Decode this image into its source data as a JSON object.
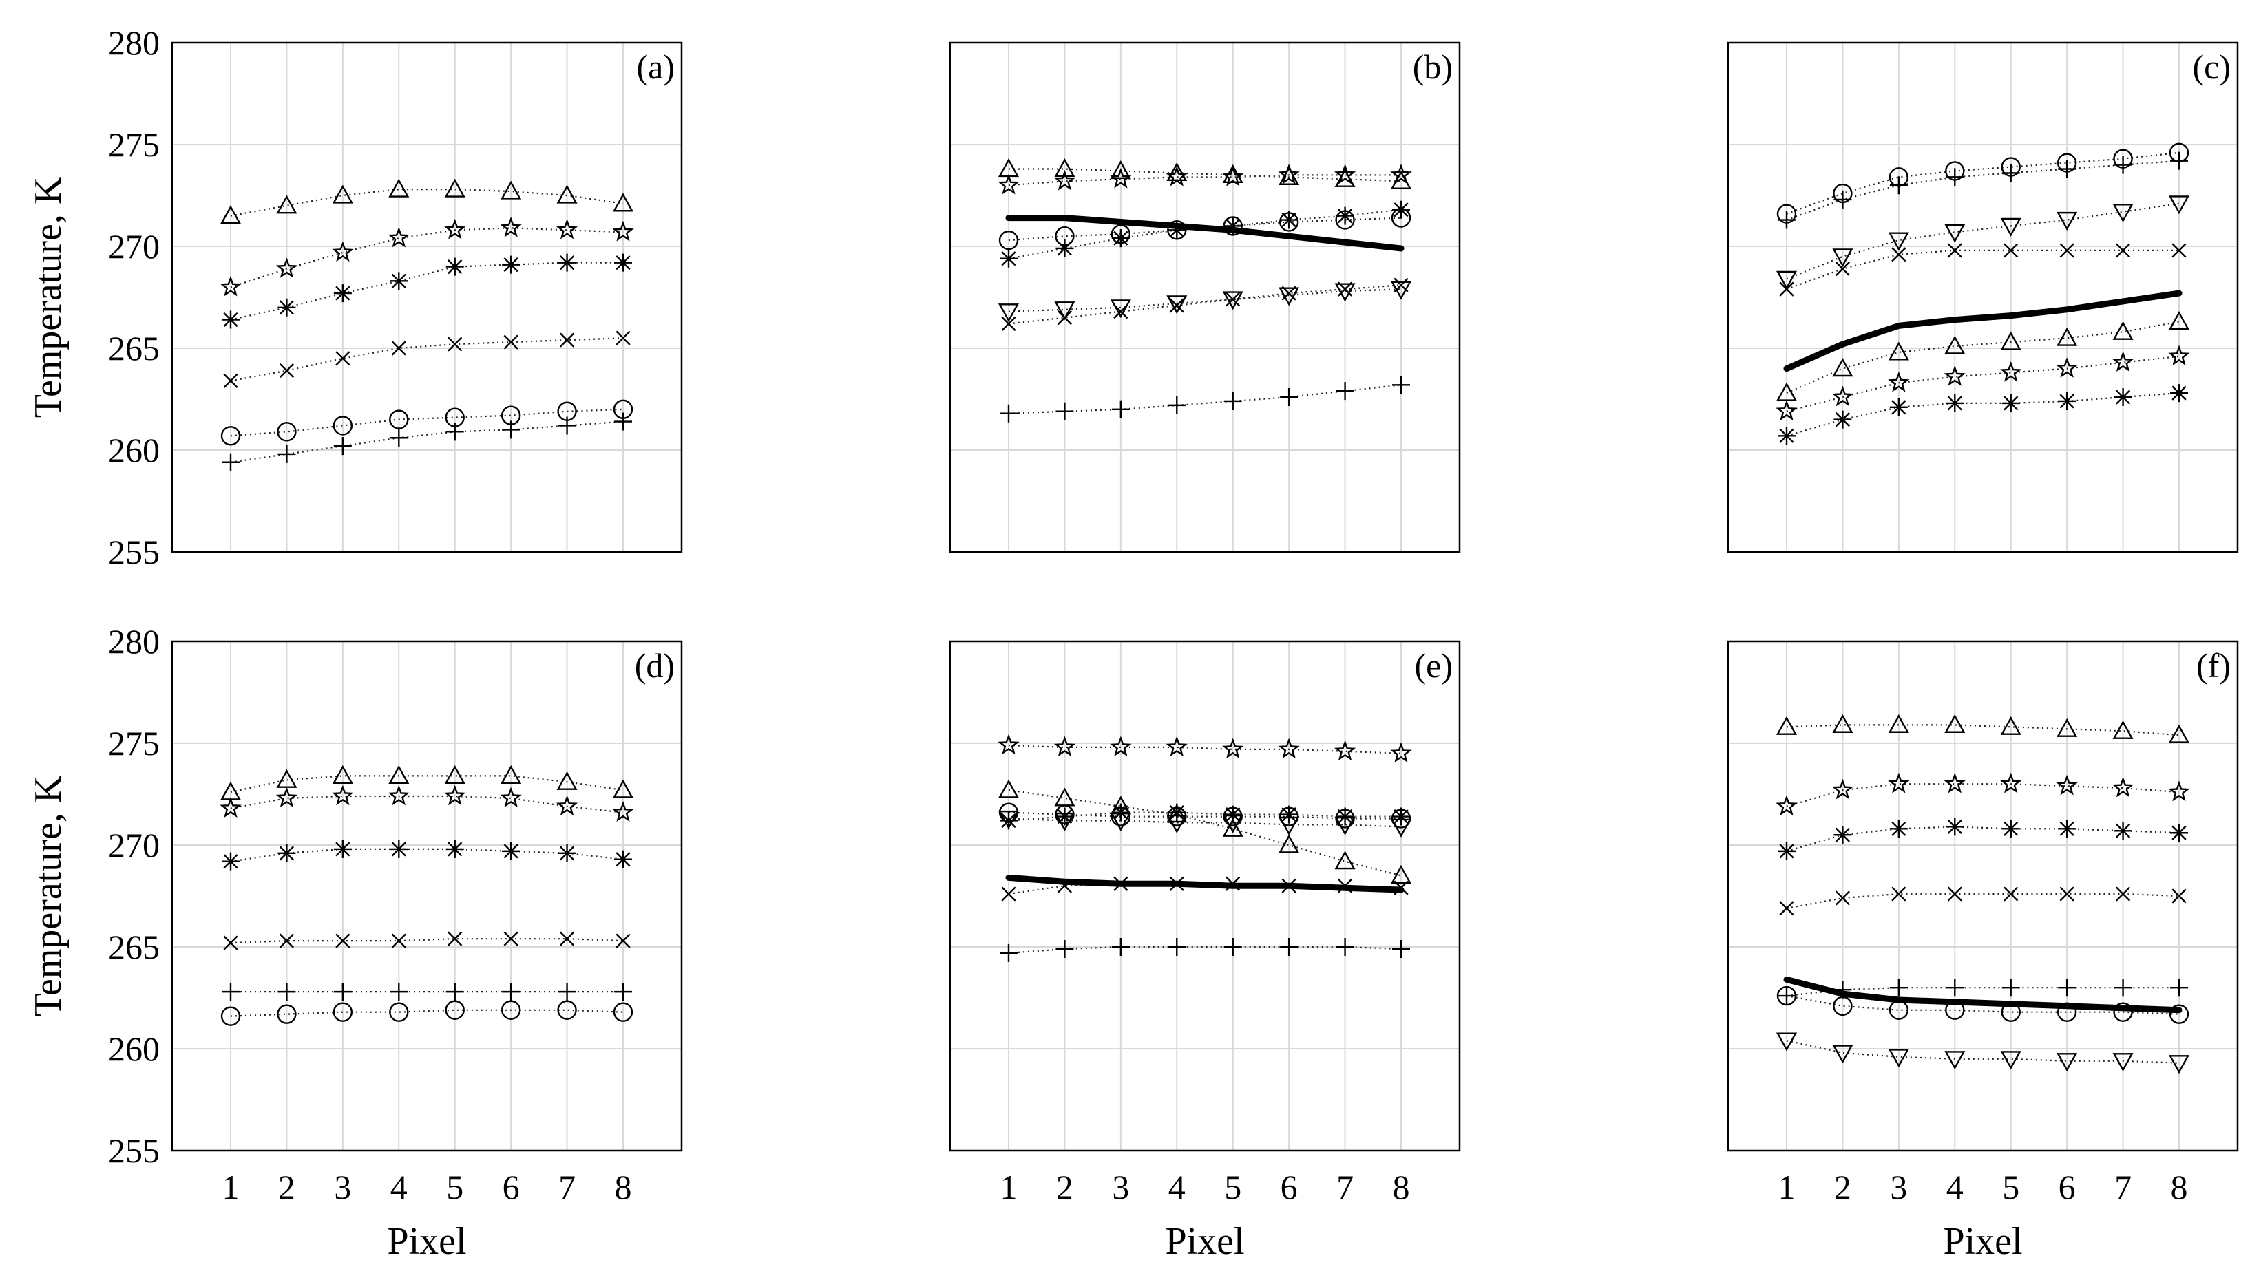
{
  "chart_data": [
    {
      "type": "line",
      "panel": "(a)",
      "x": [
        1,
        2,
        3,
        4,
        5,
        6,
        7,
        8
      ],
      "ylim": [
        255,
        280
      ],
      "xlabel": "",
      "ylabel": "Temperature, K",
      "yticks": [
        255,
        260,
        265,
        270,
        275,
        280
      ],
      "xticks": [],
      "series": [
        {
          "marker": "triangle-up",
          "style": "dotted",
          "values": [
            271.5,
            272.0,
            272.5,
            272.8,
            272.8,
            272.7,
            272.5,
            272.1
          ]
        },
        {
          "marker": "star",
          "style": "dotted",
          "values": [
            268.0,
            268.9,
            269.7,
            270.4,
            270.8,
            270.9,
            270.8,
            270.7
          ]
        },
        {
          "marker": "asterisk",
          "style": "dotted",
          "values": [
            266.4,
            267.0,
            267.7,
            268.3,
            269.0,
            269.1,
            269.2,
            269.2
          ]
        },
        {
          "marker": "x",
          "style": "dotted",
          "values": [
            263.4,
            263.9,
            264.5,
            265.0,
            265.2,
            265.3,
            265.4,
            265.5
          ]
        },
        {
          "marker": "circle",
          "style": "dotted",
          "values": [
            260.7,
            260.9,
            261.2,
            261.5,
            261.6,
            261.7,
            261.9,
            262.0
          ]
        },
        {
          "marker": "plus",
          "style": "dotted",
          "values": [
            259.4,
            259.8,
            260.2,
            260.6,
            260.9,
            261.0,
            261.2,
            261.4
          ]
        }
      ]
    },
    {
      "type": "line",
      "panel": "(b)",
      "x": [
        1,
        2,
        3,
        4,
        5,
        6,
        7,
        8
      ],
      "ylim": [
        255,
        280
      ],
      "xlabel": "",
      "ylabel": "",
      "yticks": [],
      "xticks": [],
      "series": [
        {
          "marker": "triangle-up",
          "style": "dotted",
          "values": [
            273.8,
            273.8,
            273.7,
            273.6,
            273.5,
            273.4,
            273.3,
            273.2
          ]
        },
        {
          "marker": "star",
          "style": "dotted",
          "values": [
            273.0,
            273.2,
            273.3,
            273.4,
            273.4,
            273.5,
            273.5,
            273.5
          ]
        },
        {
          "marker": "asterisk",
          "style": "dotted",
          "values": [
            269.4,
            269.9,
            270.4,
            270.8,
            271.0,
            271.3,
            271.5,
            271.8
          ]
        },
        {
          "marker": "circle",
          "style": "dotted",
          "values": [
            270.3,
            270.5,
            270.6,
            270.8,
            271.0,
            271.2,
            271.3,
            271.4
          ]
        },
        {
          "marker": "triangle-down",
          "style": "dotted",
          "values": [
            266.8,
            266.9,
            267.0,
            267.2,
            267.4,
            267.6,
            267.8,
            267.9
          ]
        },
        {
          "marker": "x",
          "style": "dotted",
          "values": [
            266.2,
            266.5,
            266.8,
            267.1,
            267.4,
            267.7,
            267.9,
            268.1
          ]
        },
        {
          "marker": "plus",
          "style": "dotted",
          "values": [
            261.8,
            261.9,
            262.0,
            262.2,
            262.4,
            262.6,
            262.9,
            263.2
          ]
        },
        {
          "marker": "none",
          "style": "thick",
          "values": [
            271.4,
            271.4,
            271.2,
            271.0,
            270.8,
            270.5,
            270.2,
            269.9
          ]
        }
      ]
    },
    {
      "type": "line",
      "panel": "(c)",
      "x": [
        1,
        2,
        3,
        4,
        5,
        6,
        7,
        8
      ],
      "ylim": [
        255,
        280
      ],
      "xlabel": "",
      "ylabel": "",
      "yticks": [],
      "xticks": [],
      "series": [
        {
          "marker": "circle",
          "style": "dotted",
          "values": [
            271.6,
            272.6,
            273.4,
            273.7,
            273.9,
            274.1,
            274.3,
            274.6
          ]
        },
        {
          "marker": "plus",
          "style": "dotted",
          "values": [
            271.3,
            272.3,
            273.0,
            273.4,
            273.6,
            273.8,
            274.0,
            274.2
          ]
        },
        {
          "marker": "triangle-down",
          "style": "dotted",
          "values": [
            268.4,
            269.5,
            270.3,
            270.7,
            271.0,
            271.3,
            271.7,
            272.1
          ]
        },
        {
          "marker": "x",
          "style": "dotted",
          "values": [
            267.9,
            268.9,
            269.6,
            269.8,
            269.8,
            269.8,
            269.8,
            269.8
          ]
        },
        {
          "marker": "triangle-up",
          "style": "dotted",
          "values": [
            262.8,
            264.0,
            264.8,
            265.1,
            265.3,
            265.5,
            265.8,
            266.3
          ]
        },
        {
          "marker": "star",
          "style": "dotted",
          "values": [
            261.9,
            262.6,
            263.3,
            263.6,
            263.8,
            264.0,
            264.3,
            264.6
          ]
        },
        {
          "marker": "asterisk",
          "style": "dotted",
          "values": [
            260.7,
            261.5,
            262.1,
            262.3,
            262.3,
            262.4,
            262.6,
            262.8
          ]
        },
        {
          "marker": "none",
          "style": "thick",
          "values": [
            264.0,
            265.2,
            266.1,
            266.4,
            266.6,
            266.9,
            267.3,
            267.7
          ]
        }
      ]
    },
    {
      "type": "line",
      "panel": "(d)",
      "x": [
        1,
        2,
        3,
        4,
        5,
        6,
        7,
        8
      ],
      "ylim": [
        255,
        280
      ],
      "xlabel": "Pixel",
      "ylabel": "Temperature, K",
      "yticks": [
        255,
        260,
        265,
        270,
        275,
        280
      ],
      "xticks": [
        1,
        2,
        3,
        4,
        5,
        6,
        7,
        8
      ],
      "series": [
        {
          "marker": "triangle-up",
          "style": "dotted",
          "values": [
            272.6,
            273.2,
            273.4,
            273.4,
            273.4,
            273.4,
            273.1,
            272.7
          ]
        },
        {
          "marker": "star",
          "style": "dotted",
          "values": [
            271.8,
            272.3,
            272.4,
            272.4,
            272.4,
            272.3,
            271.9,
            271.6
          ]
        },
        {
          "marker": "asterisk",
          "style": "dotted",
          "values": [
            269.2,
            269.6,
            269.8,
            269.8,
            269.8,
            269.7,
            269.6,
            269.3
          ]
        },
        {
          "marker": "x",
          "style": "dotted",
          "values": [
            265.2,
            265.3,
            265.3,
            265.3,
            265.4,
            265.4,
            265.4,
            265.3
          ]
        },
        {
          "marker": "plus",
          "style": "dotted",
          "values": [
            262.8,
            262.8,
            262.8,
            262.8,
            262.8,
            262.8,
            262.8,
            262.8
          ]
        },
        {
          "marker": "circle",
          "style": "dotted",
          "values": [
            261.6,
            261.7,
            261.8,
            261.8,
            261.9,
            261.9,
            261.9,
            261.8
          ]
        }
      ]
    },
    {
      "type": "line",
      "panel": "(e)",
      "x": [
        1,
        2,
        3,
        4,
        5,
        6,
        7,
        8
      ],
      "ylim": [
        255,
        280
      ],
      "xlabel": "Pixel",
      "ylabel": "",
      "yticks": [],
      "xticks": [
        1,
        2,
        3,
        4,
        5,
        6,
        7,
        8
      ],
      "series": [
        {
          "marker": "star",
          "style": "dotted",
          "values": [
            274.9,
            274.8,
            274.8,
            274.8,
            274.7,
            274.7,
            274.6,
            274.5
          ]
        },
        {
          "marker": "triangle-up",
          "style": "dotted",
          "values": [
            272.7,
            272.3,
            271.9,
            271.5,
            270.8,
            270.0,
            269.2,
            268.5
          ]
        },
        {
          "marker": "circle",
          "style": "dotted",
          "values": [
            271.6,
            271.5,
            271.4,
            271.4,
            271.4,
            271.4,
            271.3,
            271.3
          ]
        },
        {
          "marker": "asterisk",
          "style": "dotted",
          "values": [
            271.2,
            271.4,
            271.6,
            271.6,
            271.5,
            271.5,
            271.4,
            271.4
          ]
        },
        {
          "marker": "triangle-down",
          "style": "dotted",
          "values": [
            271.3,
            271.2,
            271.2,
            271.1,
            271.1,
            271.0,
            271.0,
            270.9
          ]
        },
        {
          "marker": "x",
          "style": "dotted",
          "values": [
            267.6,
            268.0,
            268.1,
            268.1,
            268.1,
            268.0,
            268.0,
            267.9
          ]
        },
        {
          "marker": "plus",
          "style": "dotted",
          "values": [
            264.7,
            264.9,
            265.0,
            265.0,
            265.0,
            265.0,
            265.0,
            264.9
          ]
        },
        {
          "marker": "none",
          "style": "thick",
          "values": [
            268.4,
            268.2,
            268.1,
            268.1,
            268.0,
            268.0,
            267.9,
            267.8
          ]
        }
      ]
    },
    {
      "type": "line",
      "panel": "(f)",
      "x": [
        1,
        2,
        3,
        4,
        5,
        6,
        7,
        8
      ],
      "ylim": [
        255,
        280
      ],
      "xlabel": "Pixel",
      "ylabel": "",
      "yticks": [],
      "xticks": [
        1,
        2,
        3,
        4,
        5,
        6,
        7,
        8
      ],
      "series": [
        {
          "marker": "triangle-up",
          "style": "dotted",
          "values": [
            275.8,
            275.9,
            275.9,
            275.9,
            275.8,
            275.7,
            275.6,
            275.4
          ]
        },
        {
          "marker": "star",
          "style": "dotted",
          "values": [
            271.9,
            272.7,
            273.0,
            273.0,
            273.0,
            272.9,
            272.8,
            272.6
          ]
        },
        {
          "marker": "asterisk",
          "style": "dotted",
          "values": [
            269.7,
            270.5,
            270.8,
            270.9,
            270.8,
            270.8,
            270.7,
            270.6
          ]
        },
        {
          "marker": "x",
          "style": "dotted",
          "values": [
            266.9,
            267.4,
            267.6,
            267.6,
            267.6,
            267.6,
            267.6,
            267.5
          ]
        },
        {
          "marker": "plus",
          "style": "dotted",
          "values": [
            262.6,
            262.9,
            263.0,
            263.0,
            263.0,
            263.0,
            263.0,
            263.0
          ]
        },
        {
          "marker": "circle",
          "style": "dotted",
          "values": [
            262.6,
            262.1,
            261.9,
            261.9,
            261.8,
            261.8,
            261.8,
            261.7
          ]
        },
        {
          "marker": "triangle-down",
          "style": "dotted",
          "values": [
            260.4,
            259.8,
            259.6,
            259.5,
            259.5,
            259.4,
            259.4,
            259.3
          ]
        },
        {
          "marker": "none",
          "style": "thick",
          "values": [
            263.4,
            262.7,
            262.4,
            262.3,
            262.2,
            262.1,
            262.0,
            261.9
          ]
        }
      ]
    }
  ]
}
